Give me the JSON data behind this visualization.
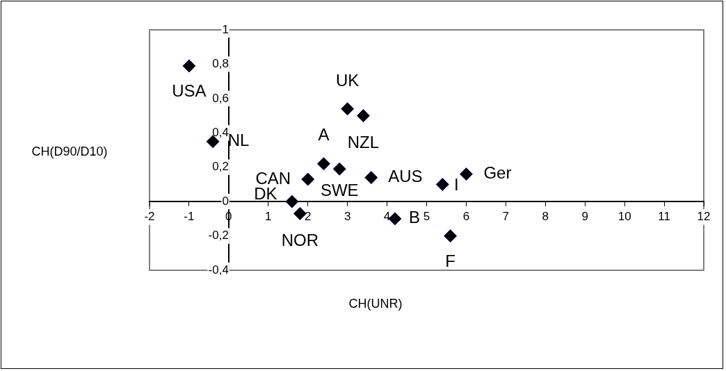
{
  "chart_data": {
    "type": "scatter",
    "xlabel": "CH(UNR)",
    "ylabel": "CH(D90/D10)",
    "marker": "diamond",
    "legend": false,
    "grid": false,
    "xlim": [
      -2,
      12
    ],
    "xticks": [
      -2,
      -1,
      0,
      1,
      2,
      3,
      4,
      5,
      6,
      7,
      8,
      9,
      10,
      11,
      12
    ],
    "ylim": [
      -0.4,
      1
    ],
    "yticks": [
      {
        "value": -0.4,
        "label": "-0,4"
      },
      {
        "value": -0.2,
        "label": "-0,2"
      },
      0,
      {
        "value": 0.2,
        "label": "0,2"
      },
      {
        "value": 0.4,
        "label": "0,4"
      },
      {
        "value": 0.6,
        "label": "0,6"
      },
      {
        "value": 0.8,
        "label": "0,8"
      },
      1
    ],
    "series": [
      {
        "name": "USA",
        "color": "#000000",
        "x": [
          -1
        ],
        "values": [
          0.79
        ]
      },
      {
        "name": "NL",
        "color": "#000000",
        "x": [
          -0.4
        ],
        "values": [
          0.35
        ]
      },
      {
        "name": "CAN",
        "color": "#000000",
        "x": [
          2
        ],
        "values": [
          0.13
        ]
      },
      {
        "name": "DK",
        "color": "#000000",
        "x": [
          1.6
        ],
        "values": [
          0
        ]
      },
      {
        "name": "NOR",
        "color": "#000000",
        "x": [
          1.8
        ],
        "values": [
          -0.07
        ]
      },
      {
        "name": "A",
        "color": "#000000",
        "x": [
          2.4
        ],
        "values": [
          0.22
        ]
      },
      {
        "name": "SWE",
        "color": "#000000",
        "x": [
          2.8
        ],
        "values": [
          0.19
        ]
      },
      {
        "name": "UK",
        "color": "#000000",
        "x": [
          3
        ],
        "values": [
          0.54
        ]
      },
      {
        "name": "NZL",
        "color": "#000000",
        "x": [
          3.4
        ],
        "values": [
          0.5
        ]
      },
      {
        "name": "AUS",
        "color": "#000000",
        "x": [
          3.6
        ],
        "values": [
          0.14
        ]
      },
      {
        "name": "I",
        "color": "#000000",
        "x": [
          5.4
        ],
        "values": [
          0.1
        ]
      },
      {
        "name": "Ger",
        "color": "#000000",
        "x": [
          6
        ],
        "values": [
          0.16
        ]
      },
      {
        "name": "B",
        "color": "#000000",
        "x": [
          4.2
        ],
        "values": [
          -0.1
        ]
      },
      {
        "name": "F",
        "color": "#000000",
        "x": [
          5.6
        ],
        "values": [
          -0.2
        ]
      }
    ]
  }
}
